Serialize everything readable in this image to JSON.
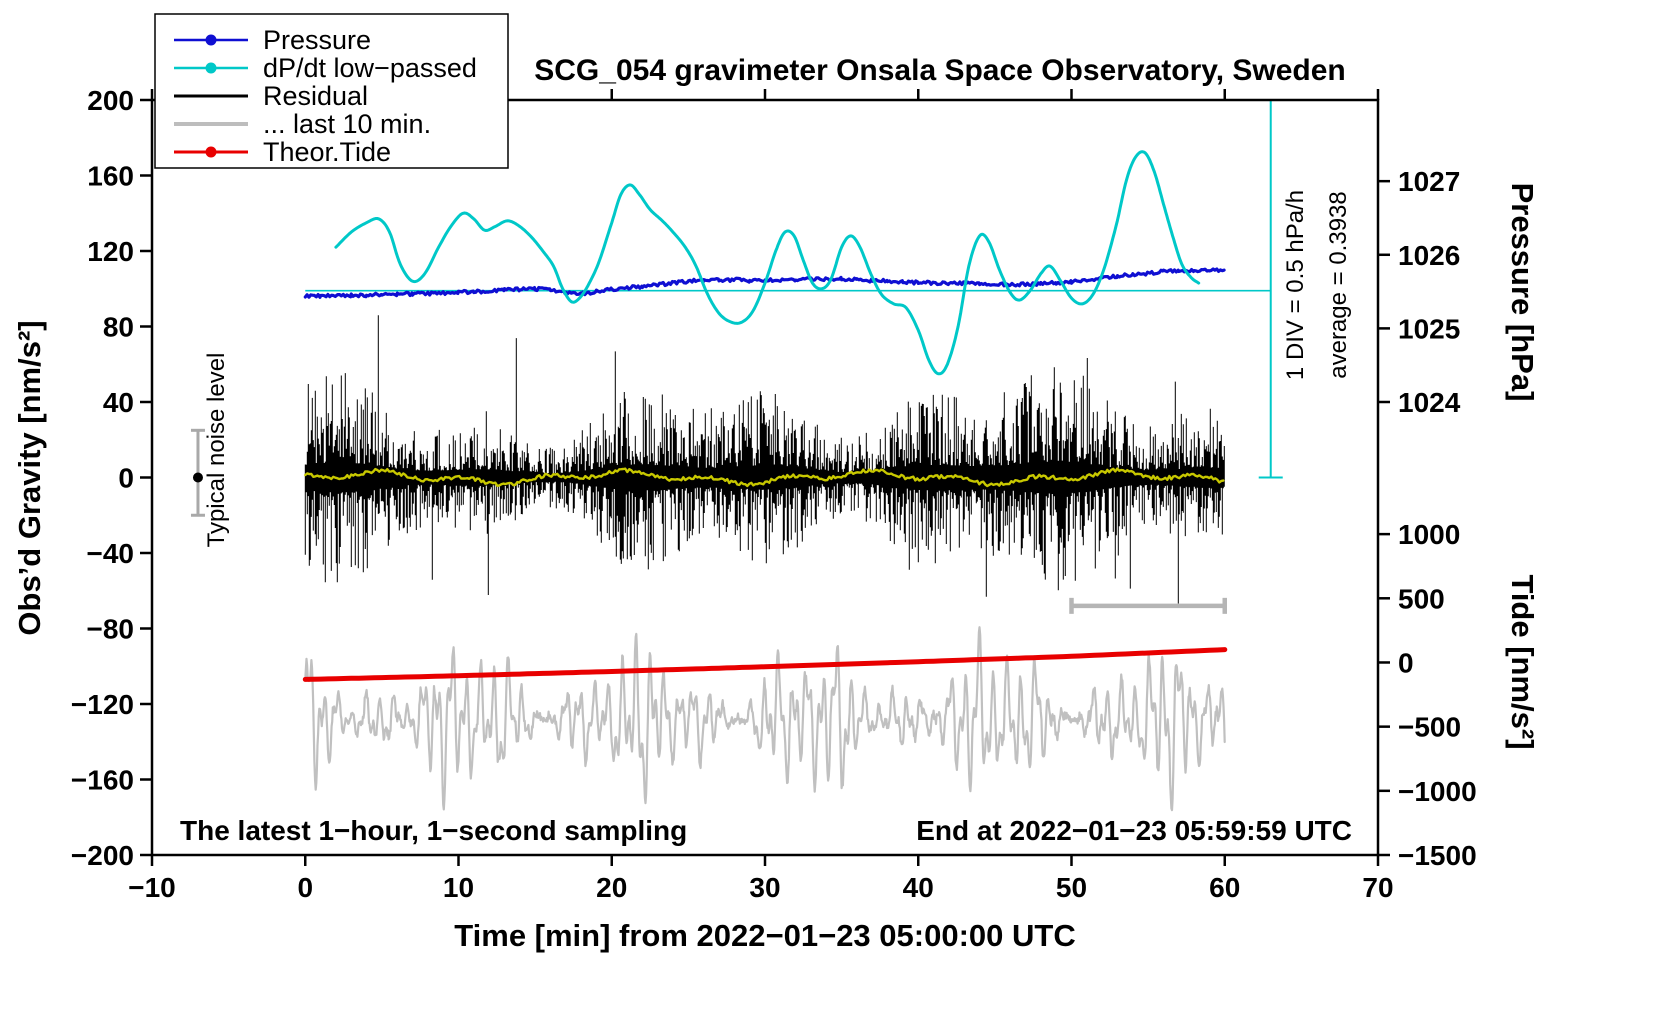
{
  "title": "SCG_054 gravimeter Onsala Space Observatory, Sweden",
  "annotations": {
    "sampling": "The latest 1−hour, 1−second sampling",
    "end": "End at 2022−01−23 05:59:59 UTC",
    "noise_label": "Typical noise level",
    "div_label": "1 DIV = 0.5 hPa/h",
    "average_label": "average = 0.3938"
  },
  "axes": {
    "x": {
      "label": "Time [min] from 2022−01−23 05:00:00 UTC",
      "min": -10,
      "max": 70,
      "ticks": [
        -10,
        0,
        10,
        20,
        30,
        40,
        50,
        60,
        70
      ]
    },
    "y_left": {
      "label": "Obs’d Gravity [nm/s²]",
      "min": -200,
      "max": 200,
      "ticks": [
        -200,
        -160,
        -120,
        -80,
        -40,
        0,
        40,
        80,
        120,
        160,
        200
      ]
    },
    "pressure": {
      "label": "Pressure [hPa]",
      "ticks": [
        1027,
        1026,
        1025,
        1024
      ],
      "map": {
        "p1": 1025,
        "g1": 79,
        "p2": 1026,
        "g2": 118
      }
    },
    "tide": {
      "label": "Tide [nm/s²]",
      "ticks": [
        1000,
        500,
        0,
        -500,
        -1000,
        -1500
      ],
      "map": {
        "t1": 0,
        "g1": -98,
        "t2": 500,
        "g2": -64
      }
    }
  },
  "legend": {
    "items": [
      {
        "label": "Pressure",
        "color": "#0f0fd2",
        "lw": 2.5,
        "dot": true
      },
      {
        "label": "dP/dt low−passed",
        "color": "#00c8c8",
        "lw": 2.5,
        "dot": true
      },
      {
        "label": "Residual",
        "color": "#000000",
        "lw": 3,
        "dot": false
      },
      {
        "label": "... last 10 min.",
        "color": "#bdbdbd",
        "lw": 4,
        "dot": false
      },
      {
        "label": "Theor.Tide",
        "color": "#e80000",
        "lw": 3,
        "dot": true
      }
    ]
  },
  "chart_data": {
    "type": "line",
    "title": "SCG_054 gravimeter Onsala Space Observatory, Sweden",
    "xlabel": "Time [min] from 2022−01−23 05:00:00 UTC",
    "x_range": [
      -10,
      70
    ],
    "x_ticks": [
      -10,
      0,
      10,
      20,
      30,
      40,
      50,
      60,
      70
    ],
    "gravity_axis_range": [
      -200,
      200
    ],
    "series": {
      "pressure_hpa": {
        "legend": "Pressure",
        "color": "#0f0fd2",
        "x_start": 0,
        "x_step_min": 1,
        "values": [
          1025.44,
          1025.44,
          1025.44,
          1025.45,
          1025.45,
          1025.46,
          1025.46,
          1025.47,
          1025.47,
          1025.48,
          1025.49,
          1025.5,
          1025.51,
          1025.52,
          1025.53,
          1025.54,
          1025.52,
          1025.49,
          1025.47,
          1025.5,
          1025.53,
          1025.55,
          1025.57,
          1025.59,
          1025.62,
          1025.64,
          1025.65,
          1025.66,
          1025.66,
          1025.65,
          1025.65,
          1025.66,
          1025.66,
          1025.67,
          1025.67,
          1025.67,
          1025.66,
          1025.65,
          1025.64,
          1025.63,
          1025.62,
          1025.62,
          1025.61,
          1025.61,
          1025.6,
          1025.6,
          1025.59,
          1025.6,
          1025.61,
          1025.62,
          1025.63,
          1025.65,
          1025.68,
          1025.71,
          1025.73,
          1025.75,
          1025.77,
          1025.78,
          1025.79,
          1025.79,
          1025.79
        ]
      },
      "dpdt_gravity": {
        "legend": "dP/dt low−passed",
        "color": "#00c8c8",
        "div_hpa_per_h": 0.5,
        "average_hpa_per_h": 0.3938,
        "average_line_gravity": 99,
        "x": [
          2,
          3,
          4,
          4.8,
          5.5,
          6.2,
          7,
          7.8,
          8.7,
          9.5,
          10.3,
          11,
          11.7,
          12.4,
          13.2,
          14,
          14.8,
          15.5,
          16.2,
          16.8,
          17.4,
          18,
          18.6,
          19.2,
          20,
          20.6,
          21.2,
          21.8,
          22.5,
          23.3,
          24,
          24.8,
          25.5,
          26.2,
          26.9,
          27.6,
          28.4,
          29.2,
          30,
          30.7,
          31.3,
          31.9,
          32.5,
          33.1,
          33.7,
          34.3,
          35,
          35.6,
          36.2,
          36.9,
          37.6,
          38.4,
          39.2,
          40,
          40.7,
          41.3,
          41.9,
          42.6,
          43.3,
          44,
          44.6,
          45.3,
          46,
          46.6,
          47.3,
          48,
          48.6,
          49.3,
          50,
          50.7,
          51.4,
          52.1,
          52.9,
          53.6,
          54.2,
          54.8,
          55.4,
          56,
          56.6,
          57.2,
          57.8,
          58.3
        ],
        "y": [
          122,
          130,
          135,
          137,
          130,
          113,
          104,
          108,
          122,
          133,
          140,
          137,
          131,
          133,
          136,
          133,
          127,
          120,
          112,
          100,
          93,
          96,
          104,
          115,
          135,
          150,
          155,
          150,
          142,
          136,
          130,
          122,
          112,
          98,
          88,
          83,
          82,
          88,
          103,
          120,
          130,
          128,
          115,
          103,
          100,
          105,
          122,
          128,
          122,
          108,
          97,
          92,
          90,
          78,
          62,
          55,
          60,
          80,
          112,
          128,
          125,
          110,
          98,
          94,
          99,
          108,
          112,
          104,
          95,
          92,
          97,
          110,
          133,
          158,
          170,
          172,
          162,
          145,
          128,
          113,
          106,
          103
        ]
      },
      "residual": {
        "legend": "Residual",
        "color": "#000000",
        "center": 0,
        "typical_amplitude": 35,
        "max_amplitude": 86,
        "x_range": [
          0,
          60
        ],
        "seed": 1234
      },
      "residual_lowpass": {
        "color": "#c8c800",
        "center": 0,
        "amplitude": 4,
        "seed": 55
      },
      "last10": {
        "legend": "... last 10 min.",
        "color": "#c0c0c0",
        "center": -128,
        "amplitude": 55,
        "x_range": [
          0,
          60
        ],
        "seed": 77
      },
      "tide": {
        "legend": "Theor.Tide",
        "color": "#e80000",
        "x": [
          0,
          5,
          10,
          15,
          20,
          25,
          30,
          35,
          40,
          45,
          50,
          55,
          60
        ],
        "tide_nms2": [
          -132,
          -118,
          -103,
          -87,
          -70,
          -52,
          -33,
          -14,
          6,
          27,
          48,
          74,
          100
        ]
      }
    },
    "markers": {
      "noise_level": {
        "x": -7,
        "dot_gravity": 0,
        "bar_gravity": [
          -20,
          25
        ]
      },
      "scale_bar": {
        "x": [
          50,
          60
        ],
        "gravity": -68
      },
      "div_scale": {
        "x": 63,
        "gravity_span": [
          0,
          200
        ]
      }
    }
  }
}
